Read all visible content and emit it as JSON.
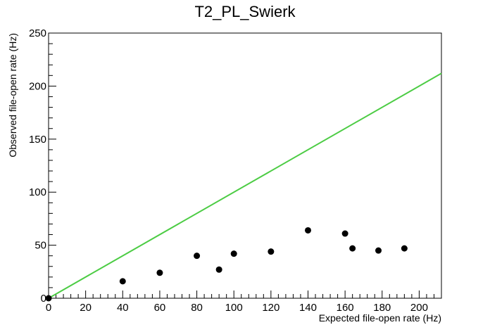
{
  "chart_data": {
    "type": "scatter",
    "title": "T2_PL_Swierk",
    "xlabel": "Expected file-open rate (Hz)",
    "ylabel": "Observed file-open rate (Hz)",
    "xlim": [
      0,
      212
    ],
    "ylim": [
      0,
      250
    ],
    "x_ticks": [
      0,
      20,
      40,
      60,
      80,
      100,
      120,
      140,
      160,
      180,
      200
    ],
    "y_ticks": [
      0,
      50,
      100,
      150,
      200,
      250
    ],
    "grid": false,
    "series": [
      {
        "points": [
          {
            "x": 0,
            "y": 0
          },
          {
            "x": 40,
            "y": 16
          },
          {
            "x": 60,
            "y": 24
          },
          {
            "x": 80,
            "y": 40
          },
          {
            "x": 92,
            "y": 27
          },
          {
            "x": 100,
            "y": 42
          },
          {
            "x": 120,
            "y": 44
          },
          {
            "x": 140,
            "y": 64
          },
          {
            "x": 160,
            "y": 61
          },
          {
            "x": 164,
            "y": 47
          },
          {
            "x": 178,
            "y": 45
          },
          {
            "x": 192,
            "y": 47
          }
        ],
        "color": "#000000"
      }
    ],
    "reference_line": {
      "from": [
        0,
        0
      ],
      "to": [
        212,
        212
      ],
      "color": "#4ccc44"
    }
  }
}
